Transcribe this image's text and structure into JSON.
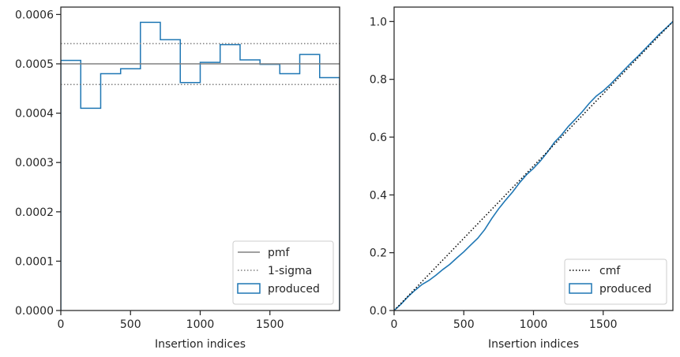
{
  "chart_data": [
    {
      "type": "histogram",
      "xlabel": "Insertion indices",
      "ylabel": "",
      "xlim": [
        0,
        2000
      ],
      "ylim": [
        0,
        0.000615
      ],
      "xticks": [
        0,
        500,
        1000,
        1500
      ],
      "yticks": [
        0.0,
        0.0001,
        0.0002,
        0.0003,
        0.0004,
        0.0005,
        0.0006
      ],
      "ytick_labels": [
        "0.0000",
        "0.0001",
        "0.0002",
        "0.0003",
        "0.0004",
        "0.0005",
        "0.0006"
      ],
      "bin_edges": [
        0,
        143,
        286,
        429,
        571,
        714,
        857,
        1000,
        1143,
        1286,
        1429,
        1571,
        1714,
        1857,
        2000
      ],
      "produced_values": [
        0.000507,
        0.00041,
        0.00048,
        0.00049,
        0.000584,
        0.000549,
        0.000462,
        0.000503,
        0.000539,
        0.000508,
        0.000499,
        0.00048,
        0.000519,
        0.000472
      ],
      "pmf": 0.0005,
      "sigma_band": [
        0.000458,
        0.000541
      ],
      "legend_position": "lower right",
      "legend": [
        {
          "label": "pmf",
          "style": "solid",
          "color": "#808080"
        },
        {
          "label": "1-sigma",
          "style": "dotted",
          "color": "#808080"
        },
        {
          "label": "produced",
          "style": "patch",
          "color": "#1f77b4"
        }
      ],
      "grid": false
    },
    {
      "type": "line",
      "xlabel": "Insertion indices",
      "ylabel": "",
      "xlim": [
        0,
        2000
      ],
      "ylim": [
        0,
        1.05
      ],
      "xticks": [
        0,
        500,
        1000,
        1500
      ],
      "yticks": [
        0.0,
        0.2,
        0.4,
        0.6,
        0.8,
        1.0
      ],
      "ytick_labels": [
        "0.0",
        "0.2",
        "0.4",
        "0.6",
        "0.8",
        "1.0"
      ],
      "cmf": {
        "x": [
          0,
          2000
        ],
        "y": [
          0,
          1
        ]
      },
      "produced": {
        "x": [
          0,
          50,
          100,
          150,
          200,
          250,
          300,
          350,
          400,
          450,
          500,
          550,
          600,
          650,
          700,
          750,
          800,
          850,
          900,
          950,
          1000,
          1050,
          1100,
          1150,
          1200,
          1250,
          1300,
          1350,
          1400,
          1450,
          1500,
          1550,
          1600,
          1650,
          1700,
          1750,
          1800,
          1850,
          1900,
          1950,
          2000
        ],
        "y": [
          0,
          0.022,
          0.048,
          0.07,
          0.09,
          0.104,
          0.122,
          0.142,
          0.16,
          0.182,
          0.203,
          0.227,
          0.25,
          0.28,
          0.318,
          0.352,
          0.382,
          0.41,
          0.442,
          0.47,
          0.492,
          0.518,
          0.548,
          0.582,
          0.607,
          0.637,
          0.662,
          0.688,
          0.717,
          0.742,
          0.76,
          0.782,
          0.807,
          0.832,
          0.857,
          0.88,
          0.905,
          0.93,
          0.955,
          0.977,
          1.0
        ]
      },
      "legend_position": "lower right",
      "legend": [
        {
          "label": "cmf",
          "style": "dotted",
          "color": "#000000"
        },
        {
          "label": "produced",
          "style": "patch",
          "color": "#1f77b4"
        }
      ],
      "grid": false
    }
  ]
}
